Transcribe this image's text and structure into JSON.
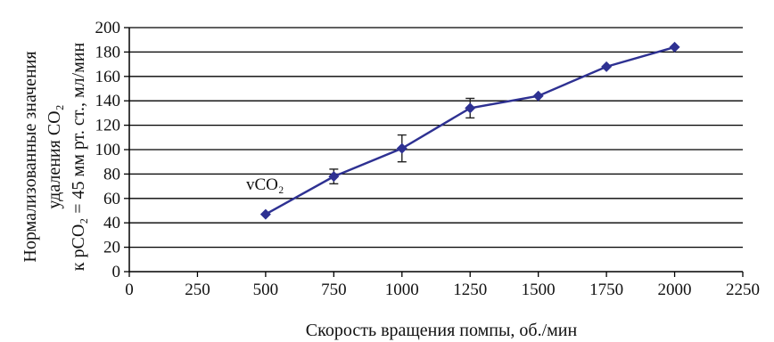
{
  "chart_data": {
    "type": "line",
    "title": "",
    "xlabel": "Скорость вращения помпы, об./мин",
    "ylabel_lines": [
      "Нормализованные значения",
      "удаления CO₂",
      "к pCO₂ = 45 мм рт. ст., мл/мин"
    ],
    "xlim": [
      0,
      2250
    ],
    "ylim": [
      0,
      200
    ],
    "x_ticks": [
      0,
      250,
      500,
      750,
      1000,
      1250,
      1500,
      1750,
      2000,
      2250
    ],
    "y_ticks": [
      0,
      20,
      40,
      60,
      80,
      100,
      120,
      140,
      160,
      180,
      200
    ],
    "grid": "horizontal",
    "series": [
      {
        "name": "vCO₂",
        "color": "#2e3192",
        "marker": "diamond",
        "x": [
          500,
          750,
          1000,
          1250,
          1500,
          1750,
          2000
        ],
        "y": [
          47,
          78,
          101,
          134,
          144,
          168,
          184
        ],
        "error": [
          null,
          6,
          11,
          8,
          null,
          null,
          null
        ]
      }
    ]
  }
}
